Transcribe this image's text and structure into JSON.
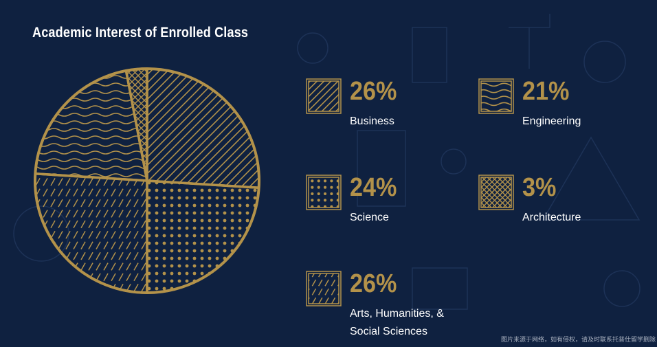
{
  "colors": {
    "background": "#0f2140",
    "accent": "#b3924a",
    "text": "#ffffff"
  },
  "footer_note": "图片来源于网络，如有侵权，请及时联系托普仕留学删除",
  "chart_data": {
    "type": "pie",
    "title": "Academic Interest of Enrolled Class",
    "unit": "%",
    "slices": [
      {
        "id": "business",
        "label": "Business",
        "value": 26,
        "display": "26%",
        "pattern": "diagonal"
      },
      {
        "id": "engineering",
        "label": "Engineering",
        "value": 21,
        "display": "21%",
        "pattern": "waves"
      },
      {
        "id": "science",
        "label": "Science",
        "value": 24,
        "display": "24%",
        "pattern": "dots"
      },
      {
        "id": "architecture",
        "label": "Architecture",
        "value": 3,
        "display": "3%",
        "pattern": "crosshatch"
      },
      {
        "id": "arts",
        "label": "Arts, Humanities, & Social Sciences",
        "value": 26,
        "display": "26%",
        "pattern": "dashes"
      }
    ]
  }
}
